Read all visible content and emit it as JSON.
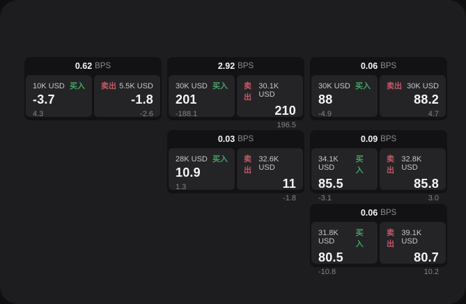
{
  "colors": {
    "page_bg": "#0f0f10",
    "window_bg": "#1d1d1f",
    "card_bg": "#121214",
    "panel_bg": "#242427",
    "buy_green": "#46a263",
    "sell_red": "#c25a66",
    "text_primary": "#f5f5f6",
    "text_label": "#c7c7ca",
    "text_muted": "#8d8d92",
    "text_dim": "#84848a"
  },
  "labels": {
    "bps_unit": "BPS",
    "buy": "买入",
    "sell": "卖出"
  },
  "cards": [
    {
      "bps": "0.62",
      "buy": {
        "size": "10K USD",
        "price": "-3.7",
        "delta": "4.3"
      },
      "sell": {
        "size": "5.5K USD",
        "price": "-1.8",
        "delta": "-2.6"
      }
    },
    {
      "bps": "2.92",
      "buy": {
        "size": "30K USD",
        "price": "201",
        "delta": "-188.1"
      },
      "sell": {
        "size": "30.1K USD",
        "price": "210",
        "delta": "196.5"
      }
    },
    {
      "bps": "0.06",
      "buy": {
        "size": "30K USD",
        "price": "88",
        "delta": "-4.9"
      },
      "sell": {
        "size": "30K USD",
        "price": "88.2",
        "delta": "4.7"
      }
    },
    {
      "bps": "0.03",
      "buy": {
        "size": "28K USD",
        "price": "10.9",
        "delta": "1.3"
      },
      "sell": {
        "size": "32.6K USD",
        "price": "11",
        "delta": "-1.8"
      }
    },
    {
      "bps": "0.09",
      "buy": {
        "size": "34.1K USD",
        "price": "85.5",
        "delta": "-3.1"
      },
      "sell": {
        "size": "32.8K USD",
        "price": "85.8",
        "delta": "3.0"
      }
    },
    {
      "bps": "0.06",
      "buy": {
        "size": "31.8K USD",
        "price": "80.5",
        "delta": "-10.8"
      },
      "sell": {
        "size": "39.1K USD",
        "price": "80.7",
        "delta": "10.2"
      }
    }
  ]
}
